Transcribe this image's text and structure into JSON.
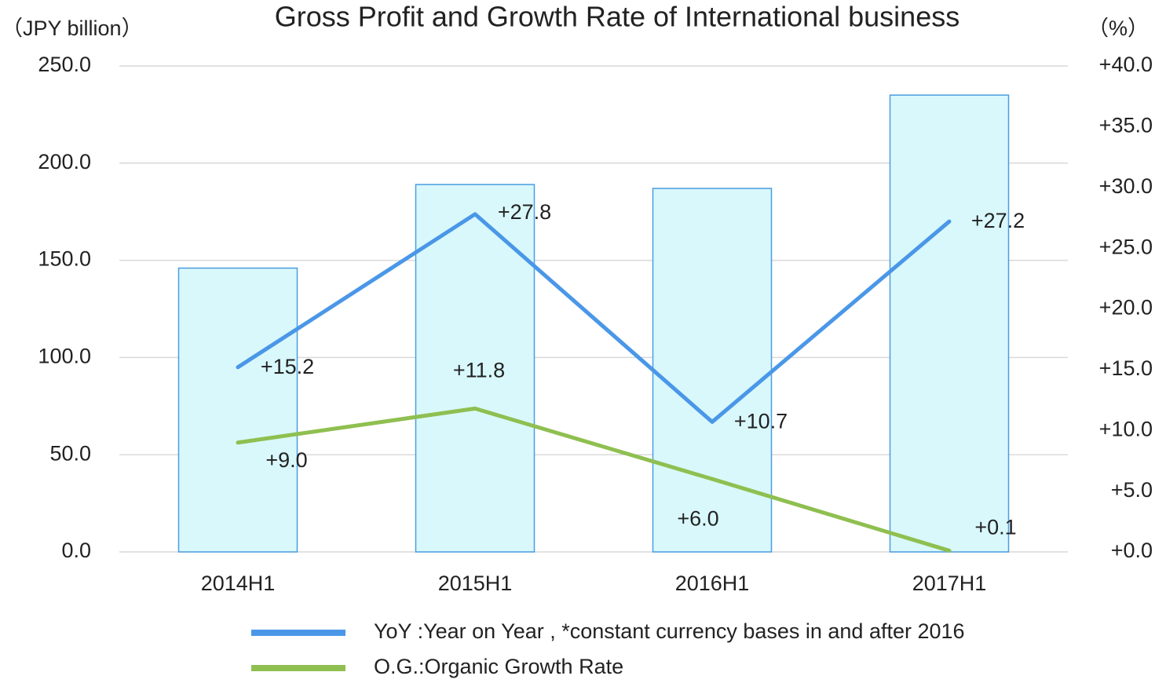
{
  "chart_data": {
    "type": "bar",
    "title": "Gross Profit and Growth Rate of International business",
    "y_label": "（JPY billion）",
    "y2_label": "（%）",
    "categories": [
      "2014H1",
      "2015H1",
      "2016H1",
      "2017H1"
    ],
    "values": [
      146,
      189,
      187,
      235
    ],
    "color": "#d9f8fc",
    "edge_color": "#4a9de0",
    "ylim": [
      0,
      250
    ],
    "yticks": [
      {
        "value": 0,
        "label": "0.0"
      },
      {
        "value": 50,
        "label": "50.0"
      },
      {
        "value": 100,
        "label": "100.0"
      },
      {
        "value": 150,
        "label": "150.0"
      },
      {
        "value": 200,
        "label": "200.0"
      },
      {
        "value": 250,
        "label": "250.0"
      }
    ],
    "y2lim": [
      0,
      40
    ],
    "y2ticks": [
      {
        "value": 0,
        "label": "+0.0"
      },
      {
        "value": 5,
        "label": "+5.0"
      },
      {
        "value": 10,
        "label": "+10.0"
      },
      {
        "value": 15,
        "label": "+15.0"
      },
      {
        "value": 20,
        "label": "+20.0"
      },
      {
        "value": 25,
        "label": "+25.0"
      },
      {
        "value": 30,
        "label": "+30.0"
      },
      {
        "value": 35,
        "label": "+35.0"
      },
      {
        "value": 40,
        "label": "+40.0"
      }
    ],
    "grid": true,
    "series": [
      {
        "name": "YoY :Year on Year , *constant currency bases in and after 2016",
        "color": "#4a97e8",
        "axis": "y2",
        "type": "line",
        "values": [
          15.2,
          27.8,
          10.7,
          27.2
        ],
        "value_labels": [
          "+15.2",
          "+27.8",
          "+10.7",
          "+27.2"
        ]
      },
      {
        "name": "O.G.:Organic Growth Rate",
        "color": "#8fbf50",
        "axis": "y2",
        "type": "line",
        "values": [
          9.0,
          11.8,
          6.0,
          0.1
        ],
        "value_labels": [
          "+9.0",
          "+11.8",
          "+6.0",
          "+0.1"
        ]
      }
    ]
  }
}
